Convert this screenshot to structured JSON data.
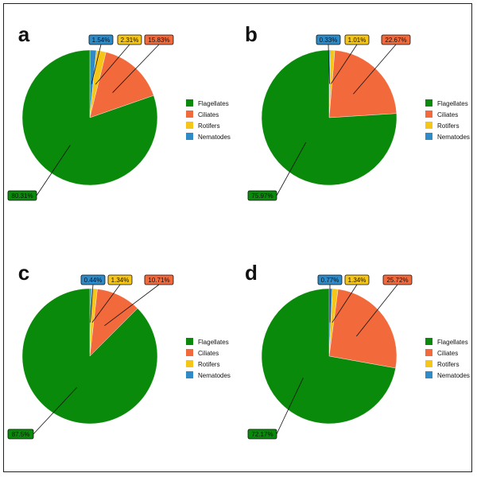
{
  "colors": {
    "Flagellates": "#0a8a0a",
    "Ciliates": "#f26a3c",
    "Rotifers": "#f5c518",
    "Nematodes": "#2f8ac8"
  },
  "legend_items": [
    "Flagellates",
    "Ciliates",
    "Rotifers",
    "Nematodes"
  ],
  "chart_data": [
    {
      "type": "pie",
      "panel": "a",
      "categories": [
        "Nematodes",
        "Rotifers",
        "Ciliates",
        "Flagellates"
      ],
      "values": [
        1.54,
        2.31,
        15.83,
        80.31
      ],
      "labels": [
        "1.54%",
        "2.31%",
        "15.83%",
        "80.31%"
      ],
      "legend_position": "right"
    },
    {
      "type": "pie",
      "panel": "b",
      "categories": [
        "Nematodes",
        "Rotifers",
        "Ciliates",
        "Flagellates"
      ],
      "values": [
        0.33,
        1.01,
        22.67,
        75.97
      ],
      "labels": [
        "0.33%",
        "1.01%",
        "22.67%",
        "75.97%"
      ],
      "legend_position": "right"
    },
    {
      "type": "pie",
      "panel": "c",
      "categories": [
        "Nematodes",
        "Rotifers",
        "Ciliates",
        "Flagellates"
      ],
      "values": [
        0.44,
        1.34,
        10.71,
        87.5
      ],
      "labels": [
        "0.44%",
        "1.34%",
        "10.71%",
        "87.5%"
      ],
      "legend_position": "right"
    },
    {
      "type": "pie",
      "panel": "d",
      "categories": [
        "Nematodes",
        "Rotifers",
        "Ciliates",
        "Flagellates"
      ],
      "values": [
        0.77,
        1.34,
        25.72,
        72.17
      ],
      "labels": [
        "0.77%",
        "1.34%",
        "25.72%",
        "72.17%"
      ],
      "legend_position": "right"
    }
  ]
}
